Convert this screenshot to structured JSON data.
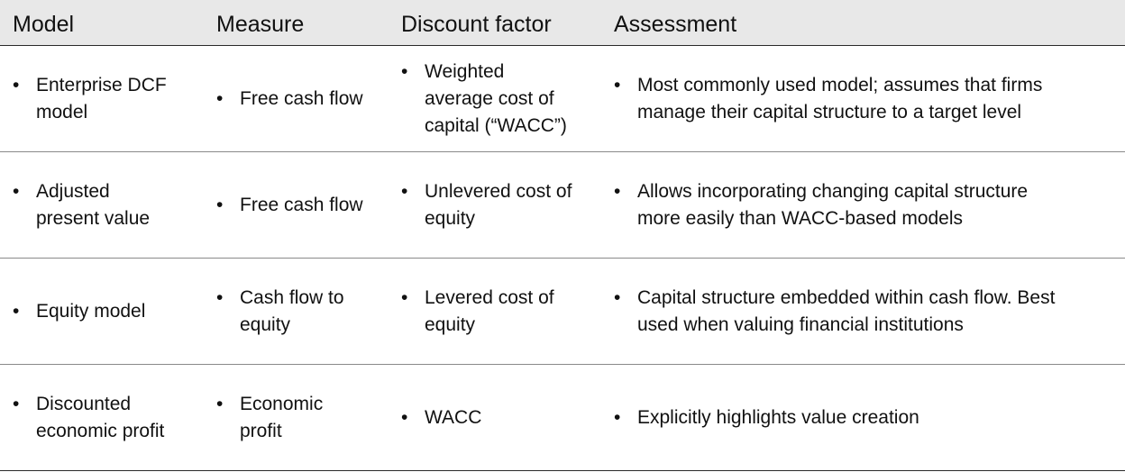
{
  "columns": [
    "Model",
    "Measure",
    "Discount factor",
    "Assessment"
  ],
  "rows": [
    {
      "model": "Enterprise DCF\nmodel",
      "measure": "Free cash flow",
      "discount": "Weighted\naverage cost of\ncapital (“WACC”)",
      "assessment": "Most commonly used model; assumes that firms\nmanage their capital structure to a target level"
    },
    {
      "model": "Adjusted\npresent value",
      "measure": "Free cash flow",
      "discount": "Unlevered cost of\nequity",
      "assessment": "Allows incorporating changing capital structure\nmore easily than WACC-based models"
    },
    {
      "model": "Equity model",
      "measure": "Cash flow to\nequity",
      "discount": "Levered cost of\nequity",
      "assessment": "Capital structure embedded within cash flow. Best\nused when valuing financial institutions"
    },
    {
      "model": "Discounted\neconomic profit",
      "measure": "Economic\nprofit",
      "discount": "WACC",
      "assessment": "Explicitly highlights value creation"
    }
  ],
  "bullet": "•"
}
